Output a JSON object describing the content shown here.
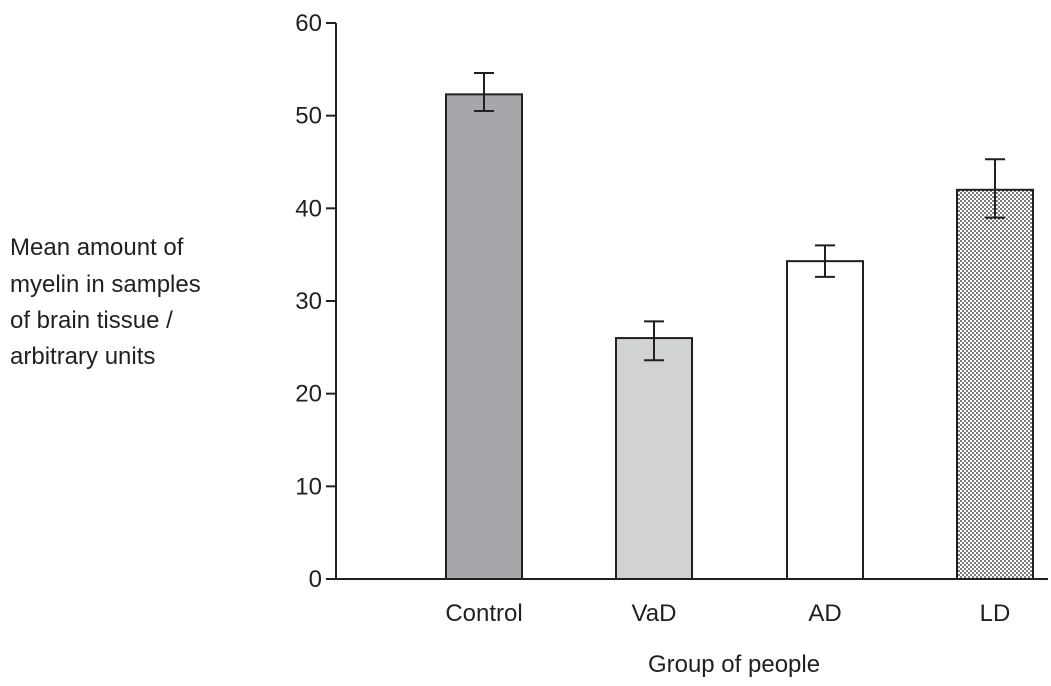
{
  "chart_data": {
    "type": "bar",
    "categories": [
      "Control",
      "VaD",
      "AD",
      "LD"
    ],
    "values": [
      52.3,
      26.0,
      34.3,
      42.0
    ],
    "error_low": [
      50.5,
      23.6,
      32.6,
      39.0
    ],
    "error_high": [
      54.6,
      27.8,
      36.0,
      45.3
    ],
    "bar_fills": [
      "#a5a7aa",
      "#d1d2d4",
      "#ffffff",
      "dots"
    ],
    "title": "",
    "xlabel": "Group of people",
    "ylabel": [
      "Mean amount of",
      "myelin in samples",
      "of brain tissue /",
      "arbitrary units"
    ],
    "ylim": [
      0,
      60
    ],
    "yticks": [
      0,
      10,
      20,
      30,
      40,
      50,
      60
    ],
    "grid": false,
    "legend": "none"
  }
}
